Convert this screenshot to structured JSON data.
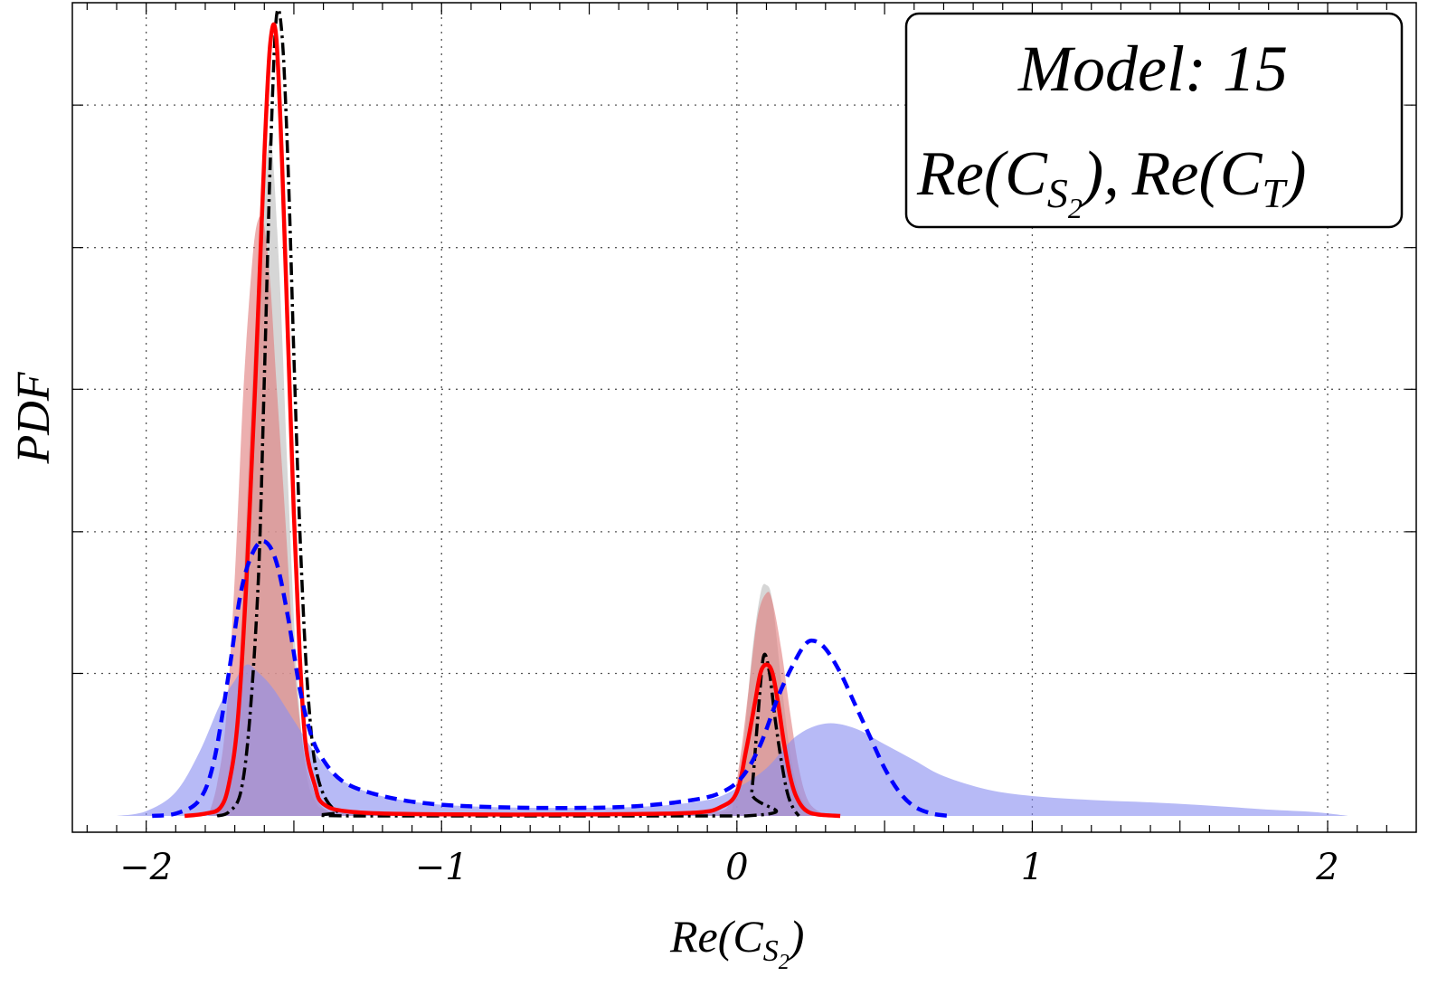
{
  "chart_data": {
    "type": "area",
    "title": "",
    "xlabel": {
      "base": "Re(C",
      "sub": "S",
      "subsub": "2",
      "close": ")"
    },
    "ylabel": "PDF",
    "xlim": [
      -2.25,
      2.3
    ],
    "ylim": [
      0,
      1.03
    ],
    "x_ticks": [
      {
        "value": -2,
        "label": "−2"
      },
      {
        "value": -1,
        "label": "−1"
      },
      {
        "value": 0,
        "label": "0"
      },
      {
        "value": 1,
        "label": "1"
      },
      {
        "value": 2,
        "label": "2"
      }
    ],
    "x_minor_step": 0.1,
    "grid": true,
    "grid_y_values": [
      0.179,
      0.357,
      0.536,
      0.714,
      0.893
    ],
    "legend": {
      "placement": "top-right",
      "line1": "Model: 15",
      "line2": [
        {
          "base": "Re(C",
          "sub": "S",
          "subsub": "2",
          "close": "),"
        },
        {
          "base": "Re(C",
          "sub": "T",
          "subsub": "",
          "close": ")"
        }
      ]
    },
    "series": [
      {
        "name": "gray-filled",
        "style": "fill",
        "color": "#c8c8c8",
        "opacity": 0.75,
        "points": [
          [
            -1.78,
            0
          ],
          [
            -1.74,
            0.02
          ],
          [
            -1.7,
            0.1
          ],
          [
            -1.67,
            0.3
          ],
          [
            -1.64,
            0.55
          ],
          [
            -1.61,
            0.73
          ],
          [
            -1.58,
            0.85
          ],
          [
            -1.55,
            0.69
          ],
          [
            -1.52,
            0.42
          ],
          [
            -1.49,
            0.18
          ],
          [
            -1.46,
            0.06
          ],
          [
            -1.43,
            0.02
          ],
          [
            -1.38,
            0.006
          ],
          [
            -1.2,
            0.002
          ],
          [
            -0.8,
            0.001
          ],
          [
            -0.3,
            0.001
          ],
          [
            -0.05,
            0.004
          ],
          [
            -0.01,
            0.02
          ],
          [
            0.02,
            0.08
          ],
          [
            0.05,
            0.2
          ],
          [
            0.08,
            0.28
          ],
          [
            0.1,
            0.29
          ],
          [
            0.12,
            0.27
          ],
          [
            0.15,
            0.17
          ],
          [
            0.18,
            0.08
          ],
          [
            0.21,
            0.03
          ],
          [
            0.25,
            0.005
          ],
          [
            0.3,
            0
          ]
        ]
      },
      {
        "name": "red-filled",
        "style": "fill",
        "color": "#e07a7a",
        "opacity": 0.6,
        "points": [
          [
            -1.79,
            0
          ],
          [
            -1.76,
            0.04
          ],
          [
            -1.73,
            0.12
          ],
          [
            -1.7,
            0.3
          ],
          [
            -1.67,
            0.54
          ],
          [
            -1.64,
            0.7
          ],
          [
            -1.62,
            0.75
          ],
          [
            -1.6,
            0.74
          ],
          [
            -1.58,
            0.67
          ],
          [
            -1.56,
            0.55
          ],
          [
            -1.53,
            0.38
          ],
          [
            -1.5,
            0.2
          ],
          [
            -1.47,
            0.09
          ],
          [
            -1.44,
            0.04
          ],
          [
            -1.4,
            0.01
          ],
          [
            -1.3,
            0.003
          ],
          [
            -1.0,
            0.001
          ],
          [
            -0.5,
            0.001
          ],
          [
            -0.1,
            0.004
          ],
          [
            -0.02,
            0.02
          ],
          [
            0.01,
            0.07
          ],
          [
            0.04,
            0.16
          ],
          [
            0.07,
            0.25
          ],
          [
            0.1,
            0.28
          ],
          [
            0.12,
            0.27
          ],
          [
            0.15,
            0.21
          ],
          [
            0.18,
            0.13
          ],
          [
            0.21,
            0.06
          ],
          [
            0.24,
            0.02
          ],
          [
            0.28,
            0.005
          ],
          [
            0.32,
            0
          ]
        ]
      },
      {
        "name": "blue-filled",
        "style": "fill",
        "color": "#8a8ff0",
        "opacity": 0.62,
        "points": [
          [
            -2.1,
            0
          ],
          [
            -2.0,
            0.006
          ],
          [
            -1.9,
            0.03
          ],
          [
            -1.82,
            0.08
          ],
          [
            -1.75,
            0.14
          ],
          [
            -1.7,
            0.17
          ],
          [
            -1.66,
            0.19
          ],
          [
            -1.62,
            0.18
          ],
          [
            -1.57,
            0.16
          ],
          [
            -1.5,
            0.12
          ],
          [
            -1.43,
            0.08
          ],
          [
            -1.36,
            0.05
          ],
          [
            -1.25,
            0.03
          ],
          [
            -1.1,
            0.018
          ],
          [
            -0.9,
            0.012
          ],
          [
            -0.6,
            0.01
          ],
          [
            -0.3,
            0.012
          ],
          [
            -0.1,
            0.02
          ],
          [
            0.0,
            0.035
          ],
          [
            0.1,
            0.06
          ],
          [
            0.2,
            0.1
          ],
          [
            0.3,
            0.116
          ],
          [
            0.4,
            0.11
          ],
          [
            0.5,
            0.09
          ],
          [
            0.6,
            0.07
          ],
          [
            0.7,
            0.05
          ],
          [
            0.85,
            0.033
          ],
          [
            1.0,
            0.025
          ],
          [
            1.2,
            0.02
          ],
          [
            1.4,
            0.017
          ],
          [
            1.6,
            0.013
          ],
          [
            1.8,
            0.008
          ],
          [
            1.95,
            0.005
          ],
          [
            2.05,
            0.001
          ],
          [
            2.07,
            0
          ]
        ]
      },
      {
        "name": "black-dashdot",
        "style": "dashdot",
        "color": "#000000",
        "width": 3.5,
        "points": [
          [
            -1.76,
            0
          ],
          [
            -1.72,
            0.005
          ],
          [
            -1.68,
            0.03
          ],
          [
            -1.65,
            0.12
          ],
          [
            -1.62,
            0.3
          ],
          [
            -1.6,
            0.55
          ],
          [
            -1.58,
            0.82
          ],
          [
            -1.56,
            1.0
          ],
          [
            -1.54,
            0.98
          ],
          [
            -1.52,
            0.82
          ],
          [
            -1.5,
            0.58
          ],
          [
            -1.48,
            0.36
          ],
          [
            -1.46,
            0.2
          ],
          [
            -1.44,
            0.1
          ],
          [
            -1.42,
            0.05
          ],
          [
            -1.39,
            0.02
          ],
          [
            -1.35,
            0.005
          ],
          [
            -1.3,
            0
          ],
          [
            0.03,
            0
          ],
          [
            0.05,
            0.03
          ],
          [
            0.07,
            0.12
          ],
          [
            0.09,
            0.2
          ],
          [
            0.11,
            0.18
          ],
          [
            0.13,
            0.12
          ],
          [
            0.15,
            0.07
          ],
          [
            0.17,
            0.03
          ],
          [
            0.19,
            0.01
          ],
          [
            0.21,
            0
          ]
        ]
      },
      {
        "name": "red-solid",
        "style": "solid",
        "color": "#ff0000",
        "width": 4.5,
        "points": [
          [
            -1.87,
            0
          ],
          [
            -1.8,
            0.003
          ],
          [
            -1.75,
            0.01
          ],
          [
            -1.72,
            0.04
          ],
          [
            -1.69,
            0.12
          ],
          [
            -1.66,
            0.3
          ],
          [
            -1.63,
            0.55
          ],
          [
            -1.6,
            0.83
          ],
          [
            -1.58,
            0.97
          ],
          [
            -1.56,
            0.98
          ],
          [
            -1.54,
            0.82
          ],
          [
            -1.52,
            0.6
          ],
          [
            -1.5,
            0.38
          ],
          [
            -1.48,
            0.2
          ],
          [
            -1.46,
            0.09
          ],
          [
            -1.43,
            0.04
          ],
          [
            -1.4,
            0.015
          ],
          [
            -1.3,
            0.005
          ],
          [
            -1.0,
            0.002
          ],
          [
            -0.5,
            0.002
          ],
          [
            -0.15,
            0.004
          ],
          [
            -0.05,
            0.012
          ],
          [
            0.0,
            0.03
          ],
          [
            0.03,
            0.08
          ],
          [
            0.06,
            0.14
          ],
          [
            0.08,
            0.18
          ],
          [
            0.1,
            0.19
          ],
          [
            0.12,
            0.18
          ],
          [
            0.14,
            0.14
          ],
          [
            0.16,
            0.09
          ],
          [
            0.18,
            0.05
          ],
          [
            0.2,
            0.025
          ],
          [
            0.23,
            0.008
          ],
          [
            0.27,
            0.002
          ],
          [
            0.35,
            0
          ]
        ]
      },
      {
        "name": "blue-dashed",
        "style": "dashed",
        "color": "#0000ff",
        "width": 4.5,
        "points": [
          [
            -1.98,
            0
          ],
          [
            -1.9,
            0.003
          ],
          [
            -1.82,
            0.02
          ],
          [
            -1.77,
            0.07
          ],
          [
            -1.72,
            0.18
          ],
          [
            -1.68,
            0.28
          ],
          [
            -1.64,
            0.33
          ],
          [
            -1.6,
            0.345
          ],
          [
            -1.56,
            0.32
          ],
          [
            -1.52,
            0.25
          ],
          [
            -1.48,
            0.16
          ],
          [
            -1.44,
            0.1
          ],
          [
            -1.4,
            0.07
          ],
          [
            -1.34,
            0.045
          ],
          [
            -1.25,
            0.03
          ],
          [
            -1.1,
            0.018
          ],
          [
            -0.9,
            0.012
          ],
          [
            -0.6,
            0.01
          ],
          [
            -0.35,
            0.012
          ],
          [
            -0.15,
            0.02
          ],
          [
            -0.05,
            0.03
          ],
          [
            0.02,
            0.05
          ],
          [
            0.08,
            0.09
          ],
          [
            0.14,
            0.15
          ],
          [
            0.19,
            0.19
          ],
          [
            0.23,
            0.215
          ],
          [
            0.26,
            0.22
          ],
          [
            0.3,
            0.21
          ],
          [
            0.35,
            0.18
          ],
          [
            0.4,
            0.14
          ],
          [
            0.45,
            0.1
          ],
          [
            0.5,
            0.06
          ],
          [
            0.55,
            0.03
          ],
          [
            0.6,
            0.012
          ],
          [
            0.66,
            0.003
          ],
          [
            0.72,
            0
          ]
        ]
      }
    ]
  }
}
